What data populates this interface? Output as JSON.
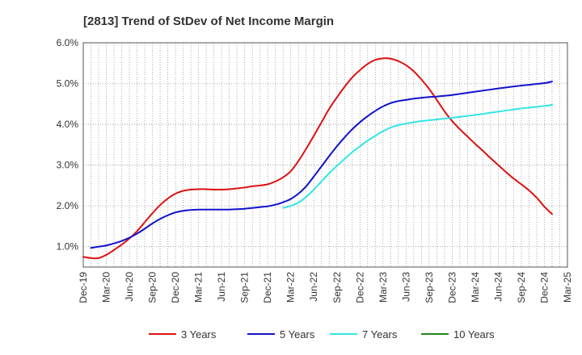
{
  "chart_data": {
    "type": "line",
    "title": "[2813]  Trend of StDev of Net Income Margin",
    "xlabel": "",
    "ylabel": "",
    "x_ticks": [
      "Dec-19",
      "Mar-20",
      "Jun-20",
      "Sep-20",
      "Dec-20",
      "Mar-21",
      "Jun-21",
      "Sep-21",
      "Dec-21",
      "Mar-22",
      "Jun-22",
      "Sep-22",
      "Dec-22",
      "Mar-23",
      "Jun-23",
      "Sep-23",
      "Dec-23",
      "Mar-24",
      "Jun-24",
      "Sep-24",
      "Dec-24",
      "Mar-25"
    ],
    "y_ticks": [
      "1.0%",
      "2.0%",
      "3.0%",
      "4.0%",
      "5.0%",
      "6.0%"
    ],
    "ylim": [
      0.5,
      6.0
    ],
    "grid": true,
    "legend_position": "bottom",
    "series": [
      {
        "name": "3 Years",
        "color": "#dd1111",
        "points": [
          [
            "Dec-19",
            0.75
          ],
          [
            "Jan-20",
            0.72
          ],
          [
            "Feb-20",
            0.72
          ],
          [
            "Mar-20",
            0.8
          ],
          [
            "Apr-20",
            0.92
          ],
          [
            "May-20",
            1.05
          ],
          [
            "Jun-20",
            1.2
          ],
          [
            "Jul-20",
            1.38
          ],
          [
            "Aug-20",
            1.6
          ],
          [
            "Sep-20",
            1.82
          ],
          [
            "Oct-20",
            2.02
          ],
          [
            "Nov-20",
            2.18
          ],
          [
            "Dec-20",
            2.3
          ],
          [
            "Jan-21",
            2.37
          ],
          [
            "Feb-21",
            2.4
          ],
          [
            "Mar-21",
            2.41
          ],
          [
            "Apr-21",
            2.41
          ],
          [
            "May-21",
            2.4
          ],
          [
            "Jun-21",
            2.4
          ],
          [
            "Jul-21",
            2.41
          ],
          [
            "Aug-21",
            2.43
          ],
          [
            "Sep-21",
            2.45
          ],
          [
            "Oct-21",
            2.48
          ],
          [
            "Nov-21",
            2.5
          ],
          [
            "Dec-21",
            2.53
          ],
          [
            "Jan-22",
            2.6
          ],
          [
            "Feb-22",
            2.7
          ],
          [
            "Mar-22",
            2.85
          ],
          [
            "Apr-22",
            3.1
          ],
          [
            "May-22",
            3.4
          ],
          [
            "Jun-22",
            3.72
          ],
          [
            "Jul-22",
            4.05
          ],
          [
            "Aug-22",
            4.38
          ],
          [
            "Sep-22",
            4.66
          ],
          [
            "Oct-22",
            4.92
          ],
          [
            "Nov-22",
            5.15
          ],
          [
            "Dec-22",
            5.33
          ],
          [
            "Jan-23",
            5.48
          ],
          [
            "Feb-23",
            5.58
          ],
          [
            "Mar-23",
            5.62
          ],
          [
            "Apr-23",
            5.61
          ],
          [
            "May-23",
            5.55
          ],
          [
            "Jun-23",
            5.45
          ],
          [
            "Jul-23",
            5.3
          ],
          [
            "Aug-23",
            5.1
          ],
          [
            "Sep-23",
            4.87
          ],
          [
            "Oct-23",
            4.6
          ],
          [
            "Nov-23",
            4.32
          ],
          [
            "Dec-23",
            4.08
          ],
          [
            "Jan-24",
            3.88
          ],
          [
            "Feb-24",
            3.7
          ],
          [
            "Mar-24",
            3.52
          ],
          [
            "Apr-24",
            3.35
          ],
          [
            "May-24",
            3.17
          ],
          [
            "Jun-24",
            3.0
          ],
          [
            "Jul-24",
            2.83
          ],
          [
            "Aug-24",
            2.67
          ],
          [
            "Sep-24",
            2.53
          ],
          [
            "Oct-24",
            2.38
          ],
          [
            "Nov-24",
            2.2
          ],
          [
            "Dec-24",
            1.98
          ],
          [
            "Jan-25",
            1.8
          ]
        ]
      },
      {
        "name": "5 Years",
        "color": "#1111cc",
        "points": [
          [
            "Jan-20",
            0.97
          ],
          [
            "Feb-20",
            1.0
          ],
          [
            "Mar-20",
            1.03
          ],
          [
            "Apr-20",
            1.08
          ],
          [
            "May-20",
            1.14
          ],
          [
            "Jun-20",
            1.22
          ],
          [
            "Jul-20",
            1.32
          ],
          [
            "Aug-20",
            1.44
          ],
          [
            "Sep-20",
            1.57
          ],
          [
            "Oct-20",
            1.68
          ],
          [
            "Nov-20",
            1.77
          ],
          [
            "Dec-20",
            1.84
          ],
          [
            "Jan-21",
            1.88
          ],
          [
            "Feb-21",
            1.9
          ],
          [
            "Mar-21",
            1.91
          ],
          [
            "Apr-21",
            1.91
          ],
          [
            "May-21",
            1.91
          ],
          [
            "Jun-21",
            1.91
          ],
          [
            "Jul-21",
            1.91
          ],
          [
            "Aug-21",
            1.92
          ],
          [
            "Sep-21",
            1.93
          ],
          [
            "Oct-21",
            1.95
          ],
          [
            "Nov-21",
            1.97
          ],
          [
            "Dec-21",
            1.99
          ],
          [
            "Jan-22",
            2.03
          ],
          [
            "Feb-22",
            2.09
          ],
          [
            "Mar-22",
            2.17
          ],
          [
            "Apr-22",
            2.3
          ],
          [
            "May-22",
            2.48
          ],
          [
            "Jun-22",
            2.72
          ],
          [
            "Jul-22",
            2.97
          ],
          [
            "Aug-22",
            3.22
          ],
          [
            "Sep-22",
            3.46
          ],
          [
            "Oct-22",
            3.68
          ],
          [
            "Nov-22",
            3.88
          ],
          [
            "Dec-22",
            4.05
          ],
          [
            "Jan-23",
            4.2
          ],
          [
            "Feb-23",
            4.33
          ],
          [
            "Mar-23",
            4.44
          ],
          [
            "Apr-23",
            4.52
          ],
          [
            "May-23",
            4.57
          ],
          [
            "Jun-23",
            4.6
          ],
          [
            "Jul-23",
            4.63
          ],
          [
            "Aug-23",
            4.65
          ],
          [
            "Sep-23",
            4.67
          ],
          [
            "Oct-23",
            4.68
          ],
          [
            "Nov-23",
            4.7
          ],
          [
            "Dec-23",
            4.72
          ],
          [
            "Mar-24",
            4.8
          ],
          [
            "Jun-24",
            4.88
          ],
          [
            "Sep-24",
            4.95
          ],
          [
            "Dec-24",
            5.01
          ],
          [
            "Jan-25",
            5.05
          ]
        ]
      },
      {
        "name": "7 Years",
        "color": "#33e5e5",
        "points": [
          [
            "Feb-22",
            1.95
          ],
          [
            "Mar-22",
            2.0
          ],
          [
            "Apr-22",
            2.08
          ],
          [
            "May-22",
            2.22
          ],
          [
            "Jun-22",
            2.4
          ],
          [
            "Jul-22",
            2.6
          ],
          [
            "Aug-22",
            2.8
          ],
          [
            "Sep-22",
            2.98
          ],
          [
            "Oct-22",
            3.15
          ],
          [
            "Nov-22",
            3.32
          ],
          [
            "Dec-22",
            3.46
          ],
          [
            "Jan-23",
            3.6
          ],
          [
            "Feb-23",
            3.72
          ],
          [
            "Mar-23",
            3.83
          ],
          [
            "Apr-23",
            3.92
          ],
          [
            "May-23",
            3.98
          ],
          [
            "Jun-23",
            4.02
          ],
          [
            "Jul-23",
            4.05
          ],
          [
            "Aug-23",
            4.08
          ],
          [
            "Sep-23",
            4.1
          ],
          [
            "Oct-23",
            4.12
          ],
          [
            "Nov-23",
            4.14
          ],
          [
            "Dec-23",
            4.16
          ],
          [
            "Mar-24",
            4.23
          ],
          [
            "Jun-24",
            4.31
          ],
          [
            "Sep-24",
            4.39
          ],
          [
            "Dec-24",
            4.45
          ],
          [
            "Jan-25",
            4.48
          ]
        ]
      },
      {
        "name": "10 Years",
        "color": "#228822",
        "points": []
      }
    ]
  }
}
